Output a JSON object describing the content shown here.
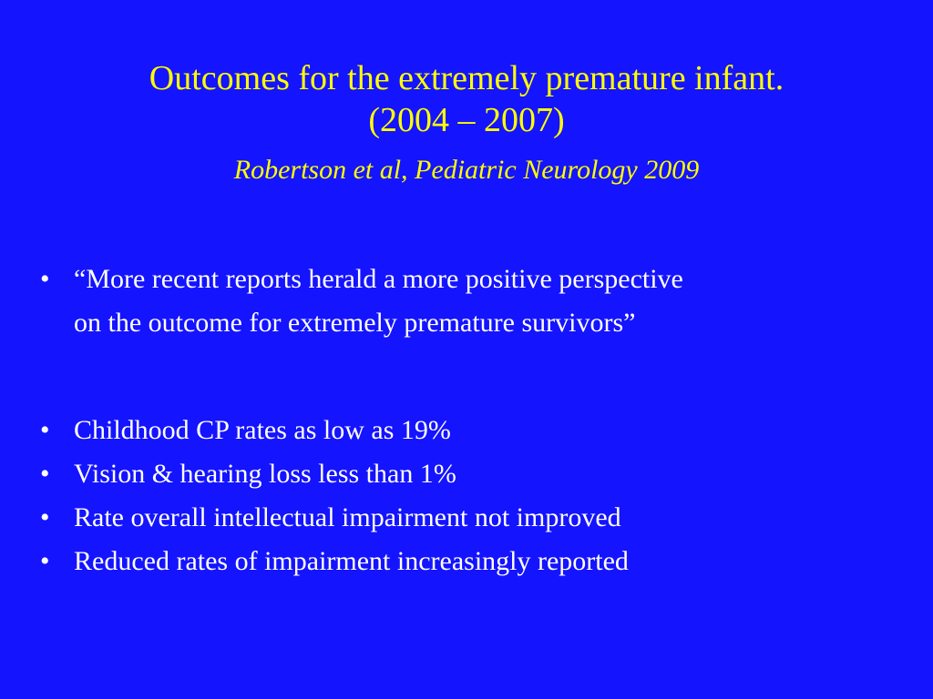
{
  "slide": {
    "title_line1": "Outcomes for the extremely premature infant.",
    "title_line2": "(2004 – 2007)",
    "subtitle": "Robertson et al, Pediatric Neurology 2009",
    "bullet_symbol": "•",
    "bullets": [
      {
        "line1": "“More recent reports herald a more positive perspective",
        "line2": "on the outcome for extremely premature survivors”"
      },
      {
        "text": "Childhood CP rates as low as 19%"
      },
      {
        "text": "Vision & hearing loss less than 1%"
      },
      {
        "text": "Rate overall intellectual impairment not improved"
      },
      {
        "text": "Reduced rates of impairment increasingly reported"
      }
    ]
  },
  "colors": {
    "background": "#1414ff",
    "title": "#ffff00",
    "body_text": "#ffffff"
  }
}
